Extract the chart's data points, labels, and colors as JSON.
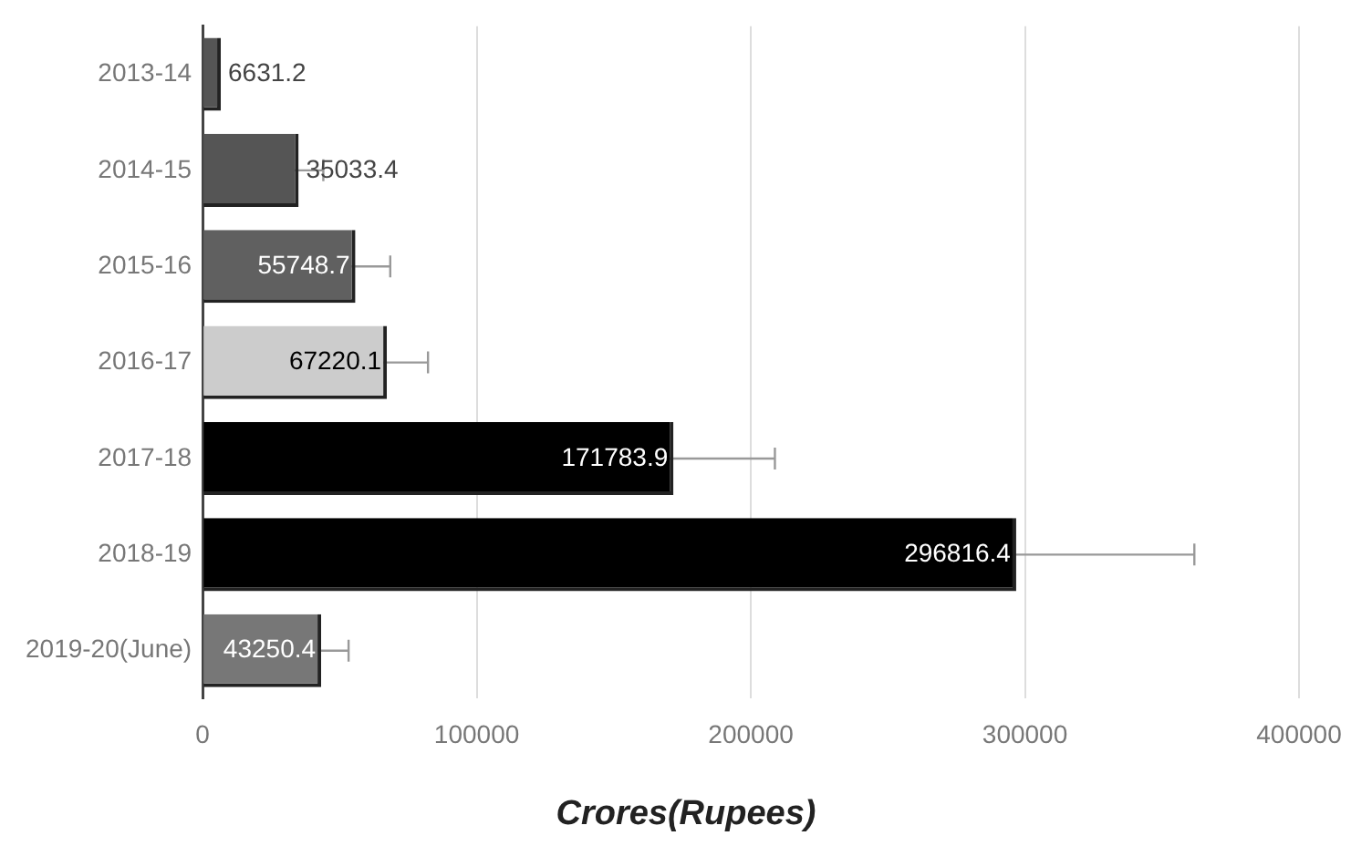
{
  "chart_data": {
    "type": "bar",
    "orientation": "horizontal",
    "xlabel": "Crores(Rupees)",
    "categories": [
      "2013-14",
      "2014-15",
      "2015-16",
      "2016-17",
      "2017-18",
      "2018-19",
      "2019-20(June)"
    ],
    "values": [
      6631.2,
      35033.4,
      55748.7,
      67220.1,
      171783.9,
      296816.4,
      43250.4
    ],
    "colors": [
      "#555555",
      "#555555",
      "#606060",
      "#cccccc",
      "#000000",
      "#000000",
      "#777777"
    ],
    "errors": [
      null,
      9000,
      12700,
      15000,
      37000,
      65000,
      10000
    ],
    "xlim": [
      0,
      400000
    ],
    "xticks": [
      0,
      100000,
      200000,
      300000,
      400000
    ],
    "grid": "x",
    "legend": false,
    "data_labels": true
  }
}
